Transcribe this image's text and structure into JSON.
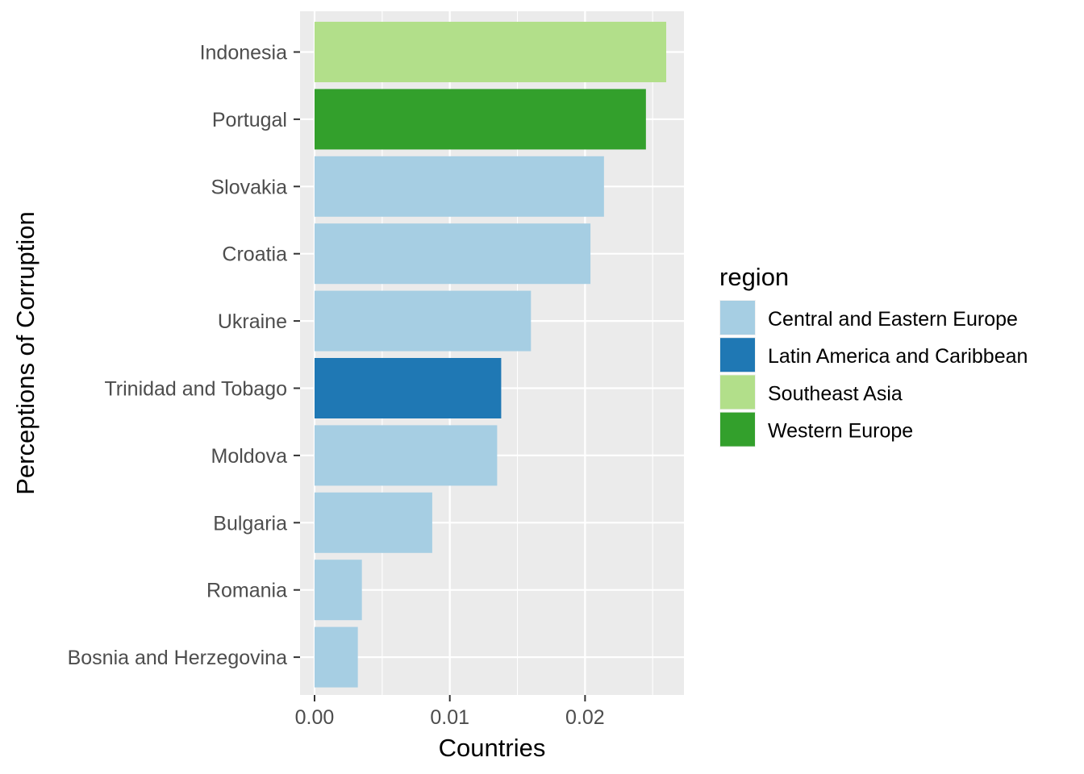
{
  "chart_data": {
    "type": "bar",
    "orientation": "horizontal",
    "title": "",
    "xlabel": "Countries",
    "ylabel": "Perceptions of Corruption",
    "xlim": [
      0,
      0.027
    ],
    "x_ticks": [
      "0.00",
      "0.01",
      "0.02"
    ],
    "x_tick_values": [
      0,
      0.01,
      0.02
    ],
    "grid": true,
    "legend_placement": "right",
    "categories": [
      "Indonesia",
      "Portugal",
      "Slovakia",
      "Croatia",
      "Ukraine",
      "Trinidad and Tobago",
      "Moldova",
      "Bulgaria",
      "Romania",
      "Bosnia and Herzegovina"
    ],
    "values": [
      0.026,
      0.0245,
      0.0214,
      0.0204,
      0.016,
      0.0138,
      0.0135,
      0.0087,
      0.0035,
      0.0032
    ],
    "regions": [
      "Southeast Asia",
      "Western Europe",
      "Central and Eastern Europe",
      "Central and Eastern Europe",
      "Central and Eastern Europe",
      "Latin America and Caribbean",
      "Central and Eastern Europe",
      "Central and Eastern Europe",
      "Central and Eastern Europe",
      "Central and Eastern Europe"
    ],
    "legend": {
      "title": "region",
      "entries": [
        {
          "label": "Central and Eastern Europe",
          "color": "#a6cee3"
        },
        {
          "label": "Latin America and Caribbean",
          "color": "#1f78b4"
        },
        {
          "label": "Southeast Asia",
          "color": "#b2df8a"
        },
        {
          "label": "Western Europe",
          "color": "#33a02c"
        }
      ]
    },
    "colors": {
      "panel_background": "#ebebeb",
      "grid_major": "#ffffff",
      "tick_text": "#4d4d4d",
      "tick_mark": "#333333"
    }
  }
}
